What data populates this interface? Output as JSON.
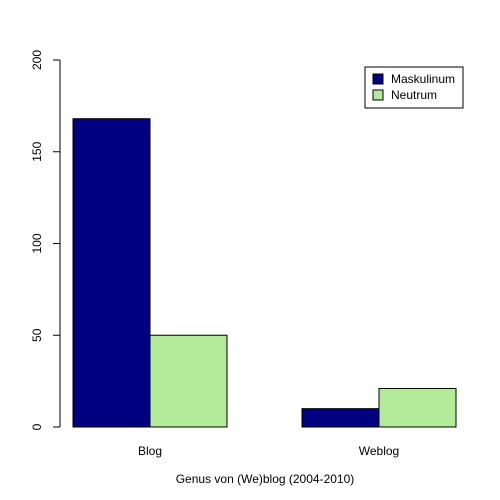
{
  "chart_data": {
    "type": "bar",
    "categories": [
      "Blog",
      "Weblog"
    ],
    "series": [
      {
        "name": "Maskulinum",
        "values": [
          168,
          10
        ],
        "color": "#000080"
      },
      {
        "name": "Neutrum",
        "values": [
          50,
          21
        ],
        "color": "#b3eb9b"
      }
    ],
    "xlabel": "Genus von (We)blog (2004-2010)",
    "ylabel": "",
    "ylim": [
      0,
      200
    ],
    "yticks": [
      0,
      50,
      100,
      150,
      200
    ],
    "legend": "top-right",
    "grid": false
  }
}
